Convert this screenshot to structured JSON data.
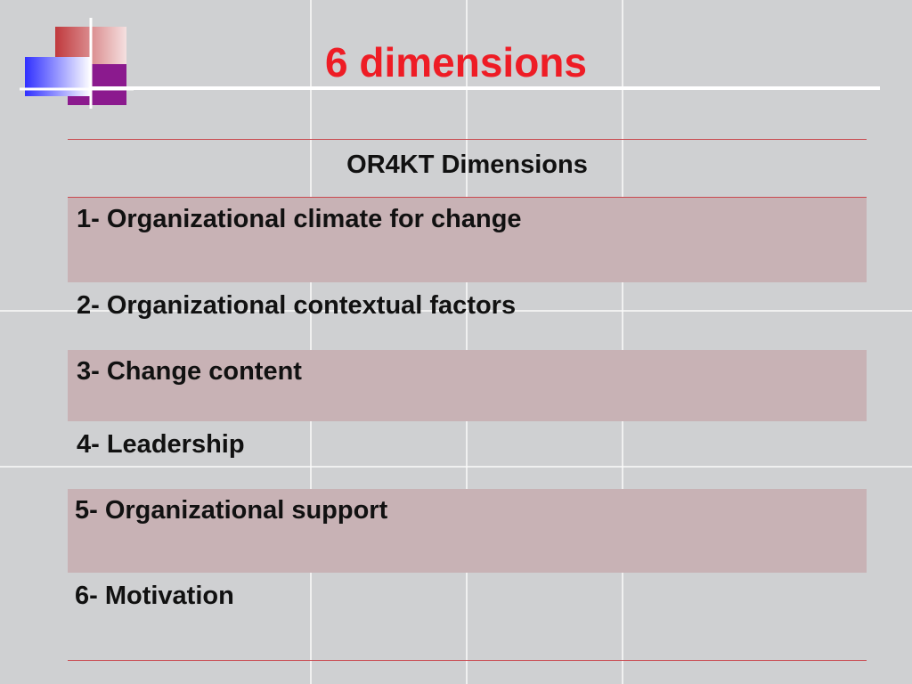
{
  "slide": {
    "title": "6 dimensions",
    "title_color": "#ee1c25"
  },
  "table": {
    "header": "OR4KT Dimensions",
    "rows": [
      {
        "label": "1- Organizational climate for change"
      },
      {
        "label": "2- Organizational contextual factors"
      },
      {
        "label": "3- Change content"
      },
      {
        "label": "4- Leadership"
      },
      {
        "label": "5- Organizational support"
      },
      {
        "label": "6- Motivation"
      }
    ],
    "shaded_row_color": "#c8b2b5",
    "rule_color": "#c9494f"
  }
}
